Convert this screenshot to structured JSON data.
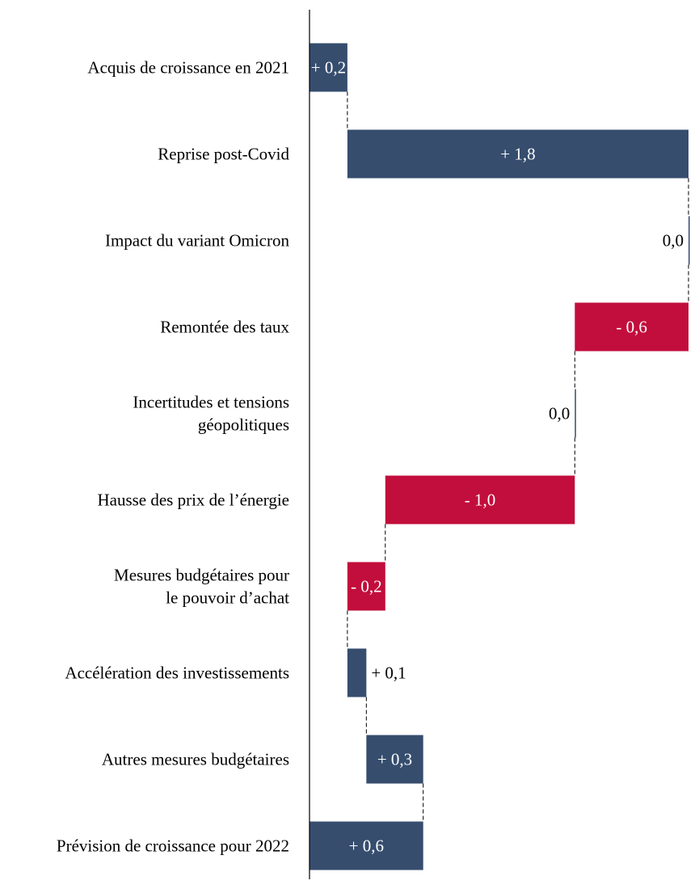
{
  "colors": {
    "positive": "#364d6e",
    "negative": "#c20e3c",
    "axis": "#000000",
    "connector": "#000000"
  },
  "chart_data": {
    "type": "bar",
    "subtype": "waterfall",
    "orientation": "horizontal",
    "categories": [
      [
        "Acquis de croissance en 2021"
      ],
      [
        "Reprise post-Covid"
      ],
      [
        "Impact du variant Omicron"
      ],
      [
        "Remontée des taux"
      ],
      [
        "Incertitudes et tensions",
        "géopolitiques"
      ],
      [
        "Hausse des prix de l’énergie"
      ],
      [
        "Mesures budgétaires pour",
        "le pouvoir d’achat"
      ],
      [
        "Accélération des investissements"
      ],
      [
        "Autres mesures budgétaires"
      ],
      [
        "Prévision de croissance pour 2022"
      ]
    ],
    "values": [
      0.2,
      1.8,
      0.0,
      -0.6,
      0.0,
      -1.0,
      -0.2,
      0.1,
      0.3,
      0.6
    ],
    "is_total": [
      false,
      false,
      false,
      false,
      false,
      false,
      false,
      false,
      false,
      true
    ],
    "data_labels": [
      "+ 0,2",
      "+ 1,8",
      "0,0",
      "- 0,6",
      "0,0",
      "- 1,0",
      "- 0,2",
      "+ 0,1",
      "+ 0,3",
      "+ 0,6"
    ],
    "xlim": [
      0,
      2.0
    ],
    "title": "",
    "xlabel": "",
    "ylabel": "",
    "grid": false,
    "legend": "none",
    "connectors": true
  }
}
